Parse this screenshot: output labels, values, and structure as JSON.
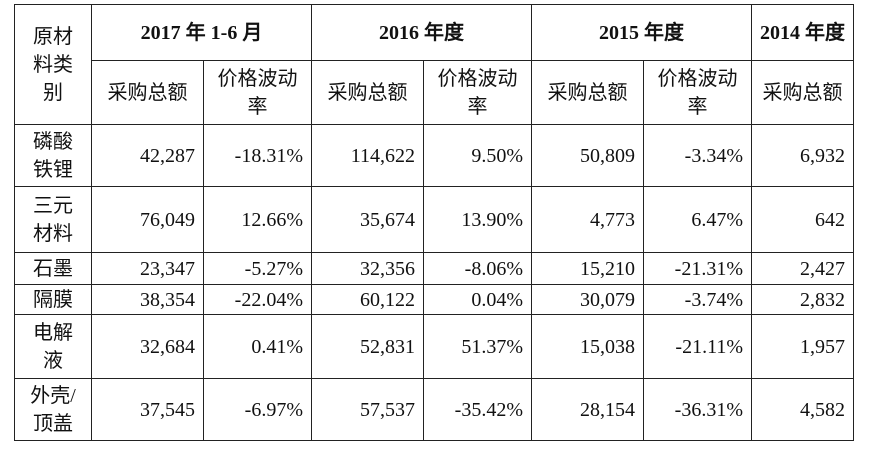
{
  "table": {
    "corner": "原材料类别",
    "periods": [
      "2017 年 1-6 月",
      "2016 年度",
      "2015 年度",
      "2014 年度"
    ],
    "sub_headers": {
      "amount": "采购总额",
      "volatility": "价格波动率"
    },
    "rows": [
      {
        "category": "磷酸铁锂",
        "values": [
          "42,287",
          "-18.31%",
          "114,622",
          "9.50%",
          "50,809",
          "-3.34%",
          "6,932"
        ]
      },
      {
        "category": "三元材料",
        "values": [
          "76,049",
          "12.66%",
          "35,674",
          "13.90%",
          "4,773",
          "6.47%",
          "642"
        ]
      },
      {
        "category": "石墨",
        "values": [
          "23,347",
          "-5.27%",
          "32,356",
          "-8.06%",
          "15,210",
          "-21.31%",
          "2,427"
        ]
      },
      {
        "category": "隔膜",
        "values": [
          "38,354",
          "-22.04%",
          "60,122",
          "0.04%",
          "30,079",
          "-3.74%",
          "2,832"
        ]
      },
      {
        "category": "电解液",
        "values": [
          "32,684",
          "0.41%",
          "52,831",
          "51.37%",
          "15,038",
          "-21.11%",
          "1,957"
        ]
      },
      {
        "category": "外壳/顶盖",
        "values": [
          "37,545",
          "-6.97%",
          "57,537",
          "-35.42%",
          "28,154",
          "-36.31%",
          "4,582"
        ]
      }
    ]
  }
}
